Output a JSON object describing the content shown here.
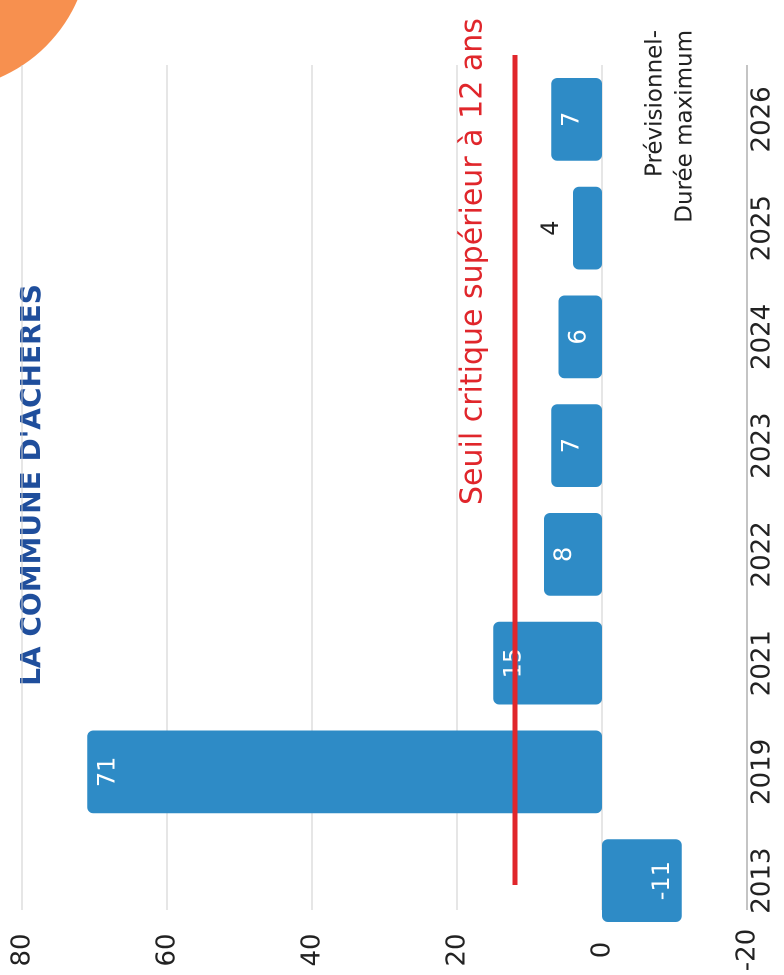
{
  "chart_data": {
    "type": "bar",
    "title": "LA COMMUNE D'ACHERES",
    "categories": [
      "2013",
      "2019",
      "2021",
      "2022",
      "2023",
      "2024",
      "2025",
      "2026"
    ],
    "values": [
      -11,
      71,
      15,
      8,
      7,
      6,
      4,
      7
    ],
    "color": "#2e8bc6",
    "ylim": [
      -20,
      80
    ],
    "yticks": [
      -20,
      0,
      20,
      40,
      60,
      80
    ],
    "grid": true,
    "threshold": {
      "value": 12,
      "label": "Seuil critique supérieur à 12 ans",
      "color": "#e0262b"
    },
    "annotations": [
      "Prévisionnel-",
      "Durée maximum"
    ]
  }
}
